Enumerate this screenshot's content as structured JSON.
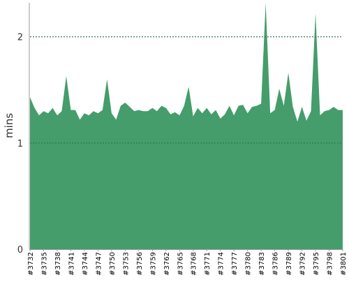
{
  "chart_data": {
    "type": "area",
    "ylabel": "mins",
    "xlabel": "",
    "ylim": [
      0,
      2.32
    ],
    "yticks": [
      0,
      1,
      2
    ],
    "grid": "horizontal dotted at y ticks",
    "x": [
      "#3732",
      "#3733",
      "#3734",
      "#3735",
      "#3736",
      "#3737",
      "#3738",
      "#3739",
      "#3740",
      "#3741",
      "#3742",
      "#3743",
      "#3744",
      "#3745",
      "#3746",
      "#3747",
      "#3748",
      "#3749",
      "#3750",
      "#3751",
      "#3752",
      "#3753",
      "#3754",
      "#3755",
      "#3756",
      "#3757",
      "#3758",
      "#3759",
      "#3760",
      "#3761",
      "#3762",
      "#3763",
      "#3764",
      "#3765",
      "#3766",
      "#3767",
      "#3768",
      "#3769",
      "#3770",
      "#3771",
      "#3772",
      "#3773",
      "#3774",
      "#3775",
      "#3776",
      "#3777",
      "#3778",
      "#3779",
      "#3780",
      "#3781",
      "#3782",
      "#3783",
      "#3784",
      "#3785",
      "#3786",
      "#3787",
      "#3788",
      "#3789",
      "#3790",
      "#3791",
      "#3792",
      "#3793",
      "#3794",
      "#3795",
      "#3796",
      "#3797",
      "#3798",
      "#3799",
      "#3800",
      "#3801"
    ],
    "x_tick_labels": [
      "#3732",
      "#3735",
      "#3738",
      "#3741",
      "#3744",
      "#3747",
      "#3750",
      "#3753",
      "#3756",
      "#3759",
      "#3762",
      "#3765",
      "#3768",
      "#3771",
      "#3774",
      "#3777",
      "#3780",
      "#3783",
      "#3786",
      "#3789",
      "#3792",
      "#3795",
      "#3798",
      "#3801"
    ],
    "values": [
      1.43,
      1.33,
      1.26,
      1.3,
      1.28,
      1.33,
      1.26,
      1.3,
      1.63,
      1.31,
      1.31,
      1.22,
      1.28,
      1.26,
      1.3,
      1.28,
      1.31,
      1.6,
      1.28,
      1.22,
      1.35,
      1.38,
      1.34,
      1.3,
      1.31,
      1.3,
      1.3,
      1.33,
      1.3,
      1.35,
      1.33,
      1.27,
      1.29,
      1.26,
      1.35,
      1.53,
      1.25,
      1.33,
      1.28,
      1.33,
      1.27,
      1.31,
      1.23,
      1.27,
      1.35,
      1.26,
      1.35,
      1.36,
      1.28,
      1.34,
      1.35,
      1.37,
      2.32,
      1.28,
      1.31,
      1.51,
      1.35,
      1.66,
      1.34,
      1.2,
      1.34,
      1.21,
      1.3,
      2.22,
      1.26,
      1.3,
      1.31,
      1.34,
      1.31,
      1.31
    ],
    "series_color": "#449d6b",
    "grid_color": "#888888",
    "axis_color": "#999999",
    "text_color": "#333333"
  }
}
